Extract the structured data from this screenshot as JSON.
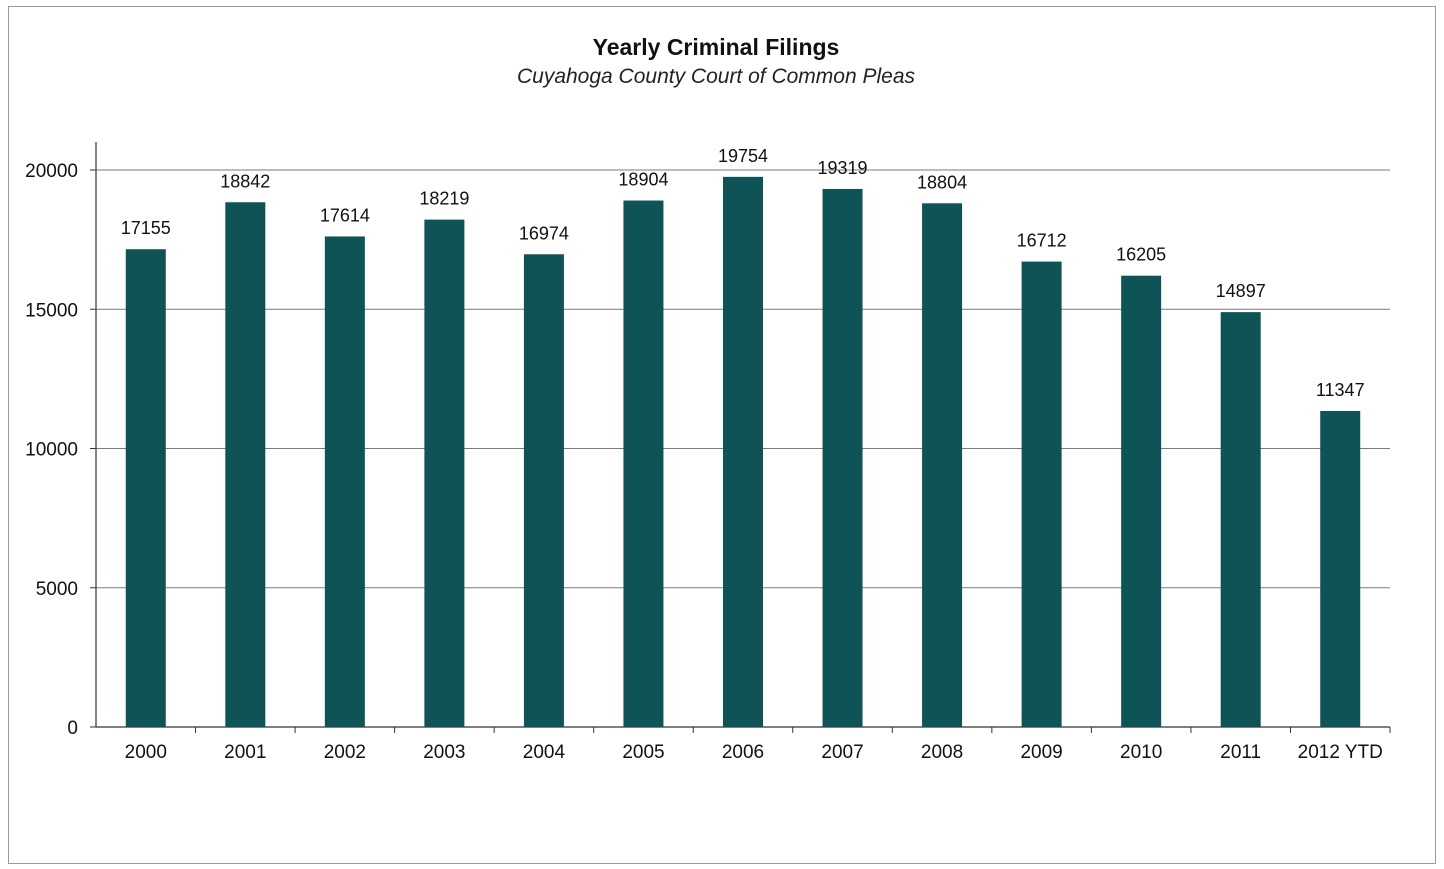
{
  "chart_data": {
    "type": "bar",
    "title": "Yearly Criminal Filings",
    "subtitle": "Cuyahoga County Court of Common Pleas",
    "categories": [
      "2000",
      "2001",
      "2002",
      "2003",
      "2004",
      "2005",
      "2006",
      "2007",
      "2008",
      "2009",
      "2010",
      "2011",
      "2012 YTD"
    ],
    "values": [
      17155,
      18842,
      17614,
      18219,
      16974,
      18904,
      19754,
      19319,
      18804,
      16712,
      16205,
      14897,
      11347
    ],
    "data_labels": [
      "17155",
      "18842",
      "17614",
      "18219",
      "16974",
      "18904",
      "19754",
      "19319",
      "18804",
      "16712",
      "16205",
      "14897",
      "11347"
    ],
    "yticks": [
      "0",
      "5000",
      "10000",
      "15000",
      "20000"
    ],
    "ytick_values": [
      0,
      5000,
      10000,
      15000,
      20000
    ],
    "ylim": [
      0,
      20000
    ],
    "xlabel": "",
    "ylabel": "",
    "grid": true,
    "legend": "none",
    "bar_color": "#0e5456"
  }
}
